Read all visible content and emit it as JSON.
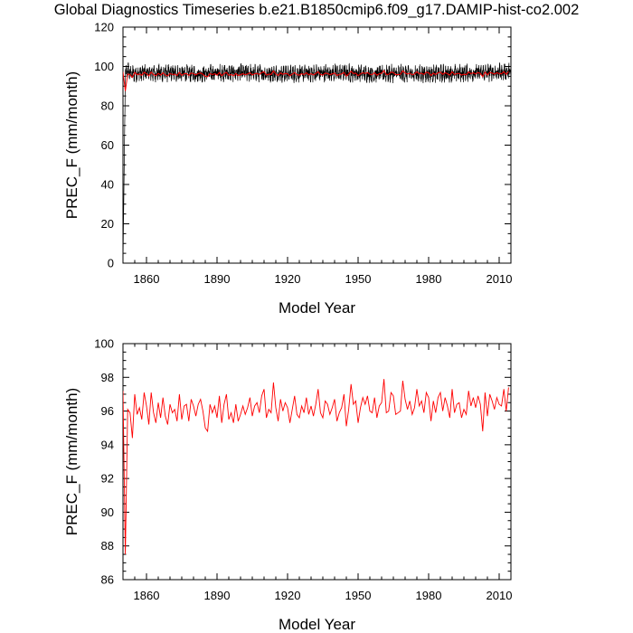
{
  "title": "Global Diagnostics Timeseries b.e21.B1850cmip6.f09_g17.DAMIP-hist-co2.002",
  "colors": {
    "monthly_line": "#000000",
    "annual_line": "#ff0000",
    "axes": "#000000",
    "background": "#ffffff"
  },
  "chart_data": [
    {
      "type": "line",
      "title": "",
      "xlabel": "Model Year",
      "ylabel": "PREC_F (mm/month)",
      "xlim": [
        1850,
        2015
      ],
      "ylim": [
        0,
        120
      ],
      "x_ticks": [
        1860,
        1890,
        1920,
        1950,
        1980,
        2010
      ],
      "x_tick_labels": [
        "1860",
        "1890",
        "1920",
        "1950",
        "1980",
        "2010"
      ],
      "x_minor_step": 5,
      "y_ticks": [
        0,
        20,
        40,
        60,
        80,
        100,
        120
      ],
      "y_tick_labels": [
        "0",
        "20",
        "40",
        "60",
        "80",
        "100",
        "120"
      ],
      "y_minor_step": 5,
      "grid": false,
      "legend": "none",
      "series": [
        {
          "color": "#000000",
          "style": "monthly values (first point 0 at year 1850), oscillating about ~96.5 between ~91 and ~103",
          "x": [
            1850.0,
            1851.0,
            1852.0,
            1853.0,
            1860.0,
            1880.0,
            1900.0,
            1920.0,
            1940.0,
            1960.0,
            1980.0,
            2000.0,
            2014.0
          ],
          "y": [
            0,
            95,
            100,
            96,
            97,
            96,
            97,
            96,
            97,
            96,
            96,
            97,
            98
          ]
        },
        {
          "color": "#ff0000",
          "style": "annual means",
          "x": [
            1850,
            1851,
            1852,
            1853,
            1854,
            1855,
            1856,
            1857,
            1858,
            1859,
            1860,
            1861,
            1862,
            1863,
            1864,
            1865,
            1866,
            1867,
            1868,
            1869,
            1870,
            1871,
            1872,
            1873,
            1874,
            1875,
            1876,
            1877,
            1878,
            1879,
            1880,
            1881,
            1882,
            1883,
            1884,
            1885,
            1886,
            1887,
            1888,
            1889,
            1890,
            1891,
            1892,
            1893,
            1894,
            1895,
            1896,
            1897,
            1898,
            1899,
            1900,
            1901,
            1902,
            1903,
            1904,
            1905,
            1906,
            1907,
            1908,
            1909,
            1910,
            1911,
            1912,
            1913,
            1914,
            1915,
            1916,
            1917,
            1918,
            1919,
            1920,
            1921,
            1922,
            1923,
            1924,
            1925,
            1926,
            1927,
            1928,
            1929,
            1930,
            1931,
            1932,
            1933,
            1934,
            1935,
            1936,
            1937,
            1938,
            1939,
            1940,
            1941,
            1942,
            1943,
            1944,
            1945,
            1946,
            1947,
            1948,
            1949,
            1950,
            1951,
            1952,
            1953,
            1954,
            1955,
            1956,
            1957,
            1958,
            1959,
            1960,
            1961,
            1962,
            1963,
            1964,
            1965,
            1966,
            1967,
            1968,
            1969,
            1970,
            1971,
            1972,
            1973,
            1974,
            1975,
            1976,
            1977,
            1978,
            1979,
            1980,
            1981,
            1982,
            1983,
            1984,
            1985,
            1986,
            1987,
            1988,
            1989,
            1990,
            1991,
            1992,
            1993,
            1994,
            1995,
            1996,
            1997,
            1998,
            1999,
            2000,
            2001,
            2002,
            2003,
            2004,
            2005,
            2006,
            2007,
            2008,
            2009,
            2010,
            2011,
            2012,
            2013,
            2014
          ],
          "y": [
            97.2,
            87.5,
            96.1,
            95.9,
            94.4,
            97.0,
            95.8,
            96.2,
            95.5,
            97.1,
            96.3,
            95.2,
            97.1,
            95.9,
            95.3,
            96.5,
            95.6,
            96.8,
            95.7,
            95.2,
            96.4,
            95.9,
            96.1,
            95.4,
            97.0,
            95.5,
            96.3,
            96.4,
            95.4,
            96.7,
            96.3,
            95.7,
            96.4,
            96.7,
            96.0,
            95.0,
            94.8,
            96.4,
            95.9,
            96.3,
            95.6,
            96.9,
            95.3,
            96.4,
            97.0,
            95.5,
            95.9,
            95.3,
            96.4,
            95.4,
            95.8,
            96.3,
            95.8,
            96.2,
            96.8,
            95.7,
            96.3,
            96.5,
            95.9,
            96.9,
            97.3,
            95.6,
            96.1,
            95.9,
            97.7,
            96.2,
            95.4,
            96.7,
            96.0,
            96.5,
            96.2,
            95.3,
            96.1,
            96.9,
            95.8,
            95.6,
            96.3,
            95.9,
            96.8,
            95.8,
            96.3,
            95.7,
            96.4,
            97.3,
            95.9,
            95.6,
            96.6,
            96.4,
            95.8,
            96.2,
            96.7,
            95.4,
            95.9,
            96.2,
            97.0,
            95.1,
            96.1,
            97.6,
            96.4,
            96.6,
            95.3,
            96.2,
            96.8,
            96.4,
            96.9,
            96.0,
            95.9,
            96.8,
            95.6,
            96.3,
            96.5,
            97.9,
            95.9,
            96.0,
            97.1,
            96.9,
            95.8,
            95.9,
            96.0,
            97.8,
            96.7,
            96.1,
            96.6,
            95.8,
            96.2,
            97.3,
            96.3,
            96.6,
            95.9,
            97.1,
            96.8,
            95.4,
            96.6,
            95.9,
            96.8,
            97.1,
            96.0,
            96.8,
            96.3,
            95.6,
            97.3,
            95.9,
            96.4,
            96.5,
            95.6,
            96.1,
            95.8,
            97.2,
            96.3,
            96.8,
            96.2,
            96.9,
            96.4,
            94.8,
            97.1,
            95.7,
            97.0,
            96.6,
            96.1,
            96.8,
            96.4,
            96.3,
            97.3,
            96.0,
            97.4
          ],
          "note_omit": "",
          "_": null
        }
      ]
    },
    {
      "type": "line",
      "title": "",
      "xlabel": "Model Year",
      "ylabel": "PREC_F (mm/month)",
      "xlim": [
        1850,
        2015
      ],
      "ylim": [
        86,
        100
      ],
      "x_ticks": [
        1860,
        1890,
        1920,
        1950,
        1980,
        2010
      ],
      "x_tick_labels": [
        "1860",
        "1890",
        "1920",
        "1950",
        "1980",
        "2010"
      ],
      "x_minor_step": 5,
      "y_ticks": [
        86,
        88,
        90,
        92,
        94,
        96,
        98,
        100
      ],
      "y_tick_labels": [
        "86",
        "88",
        "90",
        "92",
        "94",
        "96",
        "98",
        "100"
      ],
      "y_minor_step": 0.5,
      "grid": false,
      "legend": "none",
      "series": [
        {
          "color": "#ff0000",
          "style": "annual means",
          "x": [
            1850,
            1851,
            1852,
            1853,
            1854,
            1855,
            1856,
            1857,
            1858,
            1859,
            1860,
            1861,
            1862,
            1863,
            1864,
            1865,
            1866,
            1867,
            1868,
            1869,
            1870,
            1871,
            1872,
            1873,
            1874,
            1875,
            1876,
            1877,
            1878,
            1879,
            1880,
            1881,
            1882,
            1883,
            1884,
            1885,
            1886,
            1887,
            1888,
            1889,
            1890,
            1891,
            1892,
            1893,
            1894,
            1895,
            1896,
            1897,
            1898,
            1899,
            1900,
            1901,
            1902,
            1903,
            1904,
            1905,
            1906,
            1907,
            1908,
            1909,
            1910,
            1911,
            1912,
            1913,
            1914,
            1915,
            1916,
            1917,
            1918,
            1919,
            1920,
            1921,
            1922,
            1923,
            1924,
            1925,
            1926,
            1927,
            1928,
            1929,
            1930,
            1931,
            1932,
            1933,
            1934,
            1935,
            1936,
            1937,
            1938,
            1939,
            1940,
            1941,
            1942,
            1943,
            1944,
            1945,
            1946,
            1947,
            1948,
            1949,
            1950,
            1951,
            1952,
            1953,
            1954,
            1955,
            1956,
            1957,
            1958,
            1959,
            1960,
            1961,
            1962,
            1963,
            1964,
            1965,
            1966,
            1967,
            1968,
            1969,
            1970,
            1971,
            1972,
            1973,
            1974,
            1975,
            1976,
            1977,
            1978,
            1979,
            1980,
            1981,
            1982,
            1983,
            1984,
            1985,
            1986,
            1987,
            1988,
            1989,
            1990,
            1991,
            1992,
            1993,
            1994,
            1995,
            1996,
            1997,
            1998,
            1999,
            2000,
            2001,
            2002,
            2003,
            2004,
            2005,
            2006,
            2007,
            2008,
            2009,
            2010,
            2011,
            2012,
            2013,
            2014
          ],
          "y": [
            97.2,
            87.5,
            96.1,
            95.9,
            94.4,
            97.0,
            95.8,
            96.2,
            95.5,
            97.1,
            96.3,
            95.2,
            97.1,
            95.9,
            95.3,
            96.5,
            95.6,
            96.8,
            95.7,
            95.2,
            96.4,
            95.9,
            96.1,
            95.4,
            97.0,
            95.5,
            96.3,
            96.4,
            95.4,
            96.7,
            96.3,
            95.7,
            96.4,
            96.7,
            96.0,
            95.0,
            94.8,
            96.4,
            95.9,
            96.3,
            95.6,
            96.9,
            95.3,
            96.4,
            97.0,
            95.5,
            95.9,
            95.3,
            96.4,
            95.4,
            95.8,
            96.3,
            95.8,
            96.2,
            96.8,
            95.7,
            96.3,
            96.5,
            95.9,
            96.9,
            97.3,
            95.6,
            96.1,
            95.9,
            97.7,
            96.2,
            95.4,
            96.7,
            96.0,
            96.5,
            96.2,
            95.3,
            96.1,
            96.9,
            95.8,
            95.6,
            96.3,
            95.9,
            96.8,
            95.8,
            96.3,
            95.7,
            96.4,
            97.3,
            95.9,
            95.6,
            96.6,
            96.4,
            95.8,
            96.2,
            96.7,
            95.4,
            95.9,
            96.2,
            97.0,
            95.1,
            96.1,
            97.6,
            96.4,
            96.6,
            95.3,
            96.2,
            96.8,
            96.4,
            96.9,
            96.0,
            95.9,
            96.8,
            95.6,
            96.3,
            96.5,
            97.9,
            95.9,
            96.0,
            97.1,
            96.9,
            95.8,
            95.9,
            96.0,
            97.8,
            96.7,
            96.1,
            96.6,
            95.8,
            96.2,
            97.3,
            96.3,
            96.6,
            95.9,
            97.1,
            96.8,
            95.4,
            96.6,
            95.9,
            96.8,
            97.1,
            96.0,
            96.8,
            96.3,
            95.6,
            97.3,
            95.9,
            96.4,
            96.5,
            95.6,
            96.1,
            95.8,
            97.2,
            96.3,
            96.8,
            96.2,
            96.9,
            96.4,
            94.8,
            97.1,
            95.7,
            97.0,
            96.6,
            96.1,
            96.8,
            96.4,
            96.3,
            97.3,
            96.0,
            97.4
          ]
        }
      ]
    }
  ]
}
